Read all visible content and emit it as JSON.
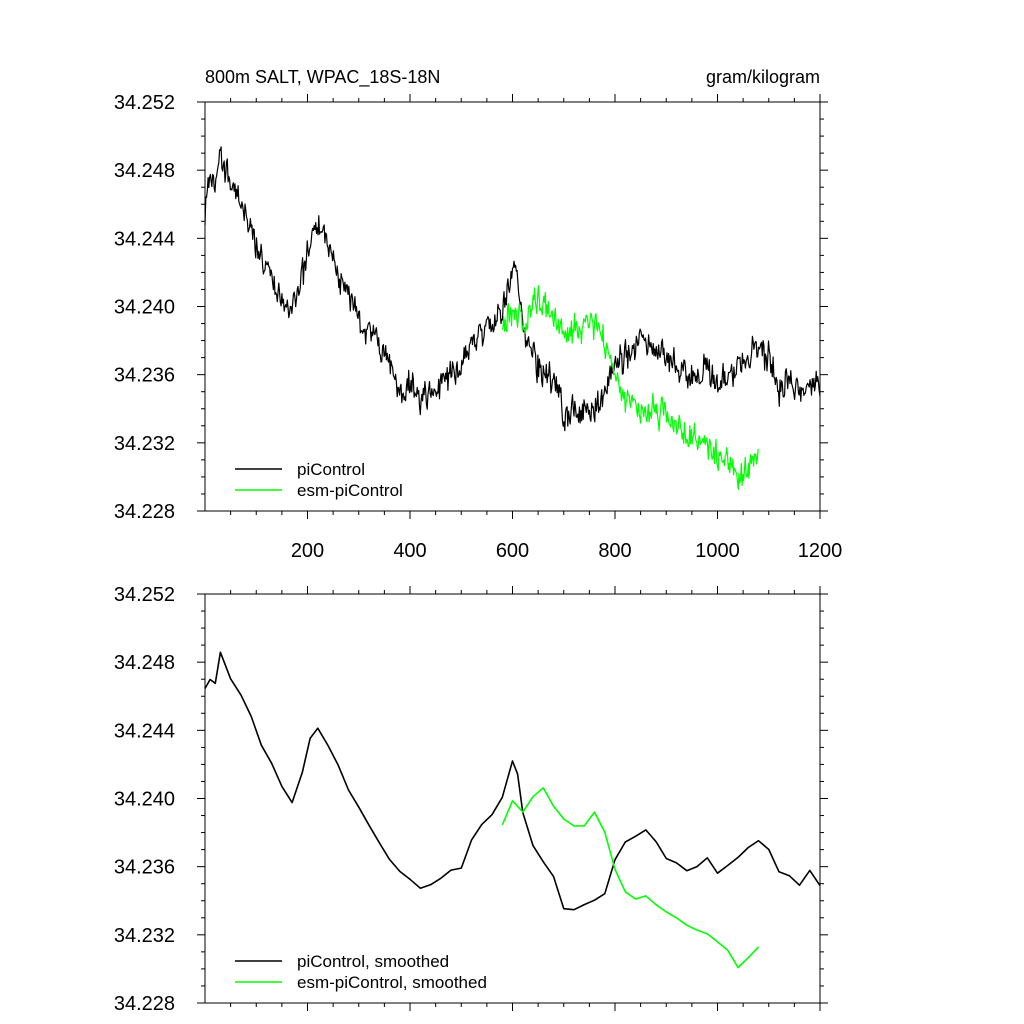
{
  "chart_data": [
    {
      "type": "line",
      "title": "800m SALT, WPAC_18S-18N",
      "units": "gram/kilogram",
      "xlim": [
        0,
        1200
      ],
      "ylim": [
        34.228,
        34.252
      ],
      "x_ticks": [
        200,
        400,
        600,
        800,
        1000,
        1200
      ],
      "x_tick_labels": [
        "200",
        "400",
        "600",
        "800",
        "1000",
        "1200"
      ],
      "y_ticks": [
        34.252,
        34.248,
        34.244,
        34.24,
        34.236,
        34.232,
        34.228
      ],
      "y_tick_labels": [
        "34.252",
        "34.248",
        "34.244",
        "34.240",
        "34.236",
        "34.232",
        "34.228"
      ],
      "legend_position": "bottom-left",
      "grid": false,
      "noise": true,
      "series": [
        {
          "name": "piControl",
          "color": "#000000",
          "x": [
            0,
            10,
            20,
            30,
            50,
            70,
            90,
            110,
            130,
            150,
            170,
            190,
            205,
            220,
            240,
            260,
            280,
            300,
            320,
            340,
            360,
            380,
            400,
            420,
            440,
            460,
            480,
            500,
            520,
            540,
            560,
            580,
            600,
            610,
            620,
            640,
            660,
            680,
            700,
            720,
            740,
            760,
            780,
            800,
            820,
            840,
            860,
            880,
            900,
            920,
            940,
            960,
            980,
            1000,
            1020,
            1040,
            1060,
            1080,
            1100,
            1120,
            1140,
            1160,
            1180,
            1200
          ],
          "y": [
            34.2455,
            34.2475,
            34.2465,
            34.249,
            34.2475,
            34.246,
            34.2445,
            34.243,
            34.2415,
            34.2405,
            34.2395,
            34.2415,
            34.2435,
            34.2445,
            34.2435,
            34.242,
            34.2405,
            34.2395,
            34.2385,
            34.2375,
            34.2365,
            34.2355,
            34.2352,
            34.2348,
            34.235,
            34.2355,
            34.2357,
            34.236,
            34.2375,
            34.2385,
            34.239,
            34.24,
            34.242,
            34.2415,
            34.239,
            34.237,
            34.236,
            34.2355,
            34.2335,
            34.2335,
            34.2338,
            34.234,
            34.2345,
            34.2365,
            34.2375,
            34.2378,
            34.238,
            34.2375,
            34.2365,
            34.2365,
            34.236,
            34.236,
            34.2365,
            34.2355,
            34.236,
            34.2365,
            34.237,
            34.2375,
            34.237,
            34.2355,
            34.2355,
            34.235,
            34.2355,
            34.235
          ]
        },
        {
          "name": "esm-piControl",
          "color": "#00ff00",
          "x": [
            580,
            600,
            620,
            640,
            660,
            680,
            700,
            720,
            740,
            760,
            780,
            800,
            820,
            840,
            860,
            880,
            900,
            920,
            940,
            960,
            980,
            1000,
            1020,
            1040,
            1060,
            1080
          ],
          "y": [
            34.2385,
            34.2395,
            34.239,
            34.24,
            34.2405,
            34.2395,
            34.2385,
            34.2385,
            34.2385,
            34.239,
            34.238,
            34.236,
            34.2345,
            34.234,
            34.2342,
            34.2338,
            34.2335,
            34.233,
            34.2325,
            34.2322,
            34.232,
            34.2315,
            34.231,
            34.2302,
            34.2305,
            34.2312
          ]
        }
      ]
    },
    {
      "type": "line",
      "xlim": [
        0,
        1200
      ],
      "ylim": [
        34.228,
        34.252
      ],
      "x_ticks": [
        200,
        400,
        600,
        800,
        1000,
        1200
      ],
      "y_ticks": [
        34.252,
        34.248,
        34.244,
        34.24,
        34.236,
        34.232,
        34.228
      ],
      "y_tick_labels": [
        "34.252",
        "34.248",
        "34.244",
        "34.240",
        "34.236",
        "34.232",
        "34.228"
      ],
      "legend_position": "bottom-left",
      "grid": false,
      "noise": false,
      "series": [
        {
          "name": "piControl, smoothed",
          "color": "#000000",
          "x": [
            0,
            10,
            20,
            30,
            50,
            70,
            90,
            110,
            130,
            150,
            170,
            190,
            205,
            220,
            240,
            260,
            280,
            300,
            320,
            340,
            360,
            380,
            400,
            420,
            440,
            460,
            480,
            500,
            520,
            540,
            560,
            580,
            600,
            610,
            620,
            640,
            660,
            680,
            700,
            720,
            740,
            760,
            780,
            800,
            820,
            840,
            860,
            880,
            900,
            920,
            940,
            960,
            980,
            1000,
            1020,
            1040,
            1060,
            1080,
            1100,
            1120,
            1140,
            1160,
            1180,
            1200
          ],
          "y": [
            34.2465,
            34.247,
            34.2468,
            34.2485,
            34.247,
            34.246,
            34.2448,
            34.2432,
            34.242,
            34.2408,
            34.2398,
            34.2415,
            34.2435,
            34.2442,
            34.2432,
            34.242,
            34.2405,
            34.2395,
            34.2385,
            34.2375,
            34.2365,
            34.2357,
            34.2352,
            34.2348,
            34.235,
            34.2354,
            34.2357,
            34.236,
            34.2375,
            34.2385,
            34.239,
            34.24,
            34.2422,
            34.2415,
            34.2392,
            34.2372,
            34.2362,
            34.2355,
            34.2335,
            34.2335,
            34.2338,
            34.234,
            34.2345,
            34.2365,
            34.2375,
            34.2378,
            34.2382,
            34.2375,
            34.2365,
            34.2362,
            34.2358,
            34.236,
            34.2365,
            34.2356,
            34.236,
            34.2365,
            34.2372,
            34.2375,
            34.237,
            34.2356,
            34.2355,
            34.235,
            34.2357,
            34.2348
          ]
        },
        {
          "name": "esm-piControl, smoothed",
          "color": "#00ff00",
          "x": [
            580,
            600,
            620,
            640,
            660,
            680,
            700,
            720,
            740,
            760,
            780,
            800,
            820,
            840,
            860,
            880,
            900,
            920,
            940,
            960,
            980,
            1000,
            1020,
            1040,
            1060,
            1080
          ],
          "y": [
            34.2385,
            34.2398,
            34.2392,
            34.2402,
            34.2407,
            34.2396,
            34.2387,
            34.2384,
            34.2385,
            34.2392,
            34.238,
            34.2358,
            34.2345,
            34.2342,
            34.2343,
            34.2338,
            34.2334,
            34.233,
            34.2326,
            34.2322,
            34.232,
            34.2316,
            34.231,
            34.2301,
            34.2306,
            34.2313
          ]
        }
      ]
    }
  ]
}
